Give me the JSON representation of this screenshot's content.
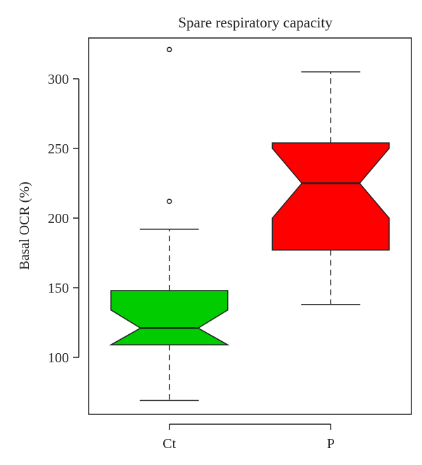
{
  "chart_data": {
    "type": "boxplot",
    "title": "Spare respiratory capacity",
    "xlabel": "",
    "ylabel": "Basal OCR (%)",
    "ylim": [
      60,
      330
    ],
    "yticks": [
      100,
      150,
      200,
      250,
      300
    ],
    "notched": true,
    "grid": false,
    "legend": "none",
    "categories": [
      "Ct",
      "P"
    ],
    "boxes": [
      {
        "category": "Ct",
        "color": "#00cc00",
        "whisker_low": 69,
        "q1": 109,
        "notch_low": 109,
        "median": 121,
        "notch_high": 134,
        "q3": 148,
        "whisker_high": 192,
        "outliers": [
          212,
          321
        ]
      },
      {
        "category": "P",
        "color": "#ff0000",
        "whisker_low": 138,
        "q1": 177,
        "notch_low": 200,
        "median": 225,
        "notch_high": 250,
        "q3": 254,
        "whisker_high": 305,
        "outliers": []
      }
    ]
  }
}
